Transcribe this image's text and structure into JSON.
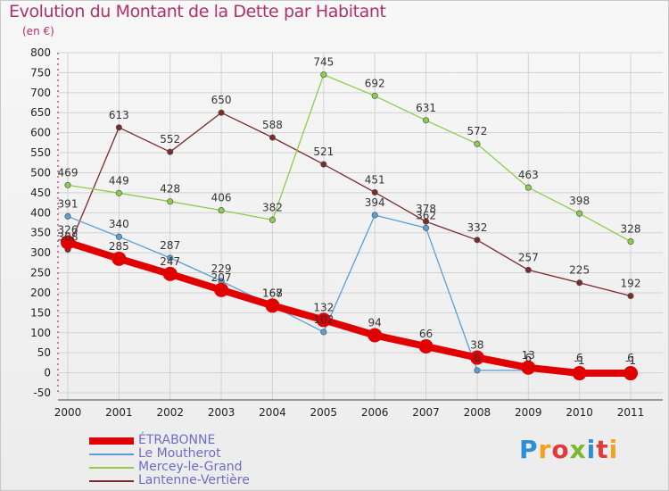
{
  "title": "Evolution du Montant de la Dette par Habitant",
  "unit": "(en €)",
  "logo": {
    "text": "Proxiti",
    "colors": [
      "#2a8fd6",
      "#f2a21c",
      "#e23a3a",
      "#7ab830",
      "#2a8fd6",
      "#e23a3a",
      "#f2a21c"
    ]
  },
  "chart_data": {
    "type": "line",
    "x": [
      "2000",
      "2001",
      "2002",
      "2003",
      "2004",
      "2005",
      "2006",
      "2007",
      "2008",
      "2009",
      "2010",
      "2011"
    ],
    "ylim": [
      -50,
      800
    ],
    "yticks": [
      -50,
      0,
      50,
      100,
      150,
      200,
      250,
      300,
      350,
      400,
      450,
      500,
      550,
      600,
      650,
      700,
      750,
      800
    ],
    "grid": true,
    "legend_position": "bottom-left",
    "series": [
      {
        "name": "ÉTRABONNE",
        "color": "#e00000",
        "width": 8,
        "marker": 8,
        "values": [
          326,
          285,
          247,
          207,
          168,
          132,
          94,
          66,
          38,
          13,
          -1,
          -1
        ],
        "labels": [
          "326",
          "285",
          "247",
          "207",
          "168",
          "132",
          "94",
          "66",
          "38",
          "13",
          "-1",
          "-1"
        ]
      },
      {
        "name": "Le Moutherot",
        "color": "#5a9ed6",
        "width": 1.3,
        "marker": 3.2,
        "values": [
          391,
          340,
          287,
          229,
          167,
          102,
          394,
          362,
          6,
          6,
          6,
          6
        ],
        "labels": [
          "391",
          "340",
          "287",
          "229",
          "167",
          "102",
          "394",
          "362",
          "6",
          "6",
          "6",
          "6"
        ]
      },
      {
        "name": "Mercey-le-Grand",
        "color": "#8ccd4a",
        "width": 1.3,
        "marker": 3.2,
        "values": [
          469,
          449,
          428,
          406,
          382,
          745,
          692,
          631,
          572,
          463,
          398,
          328
        ],
        "labels": [
          "469",
          "449",
          "428",
          "406",
          "382",
          "745",
          "692",
          "631",
          "572",
          "463",
          "398",
          "328"
        ]
      },
      {
        "name": "Lantenne-Vertière",
        "color": "#7a2a2a",
        "width": 1.3,
        "marker": 3.2,
        "values": [
          308,
          613,
          552,
          650,
          588,
          521,
          451,
          378,
          332,
          257,
          225,
          192
        ],
        "labels": [
          "308",
          "613",
          "552",
          "650",
          "588",
          "521",
          "451",
          "378",
          "332",
          "257",
          "225",
          "192"
        ]
      }
    ]
  },
  "legend": [
    {
      "label": "ÉTRABONNE",
      "color": "#e00000",
      "thickness": 8
    },
    {
      "label": "Le Moutherot",
      "color": "#5a9ed6",
      "thickness": 2
    },
    {
      "label": "Mercey-le-Grand",
      "color": "#8ccd4a",
      "thickness": 2
    },
    {
      "label": "Lantenne-Vertière",
      "color": "#7a2a2a",
      "thickness": 2
    }
  ]
}
